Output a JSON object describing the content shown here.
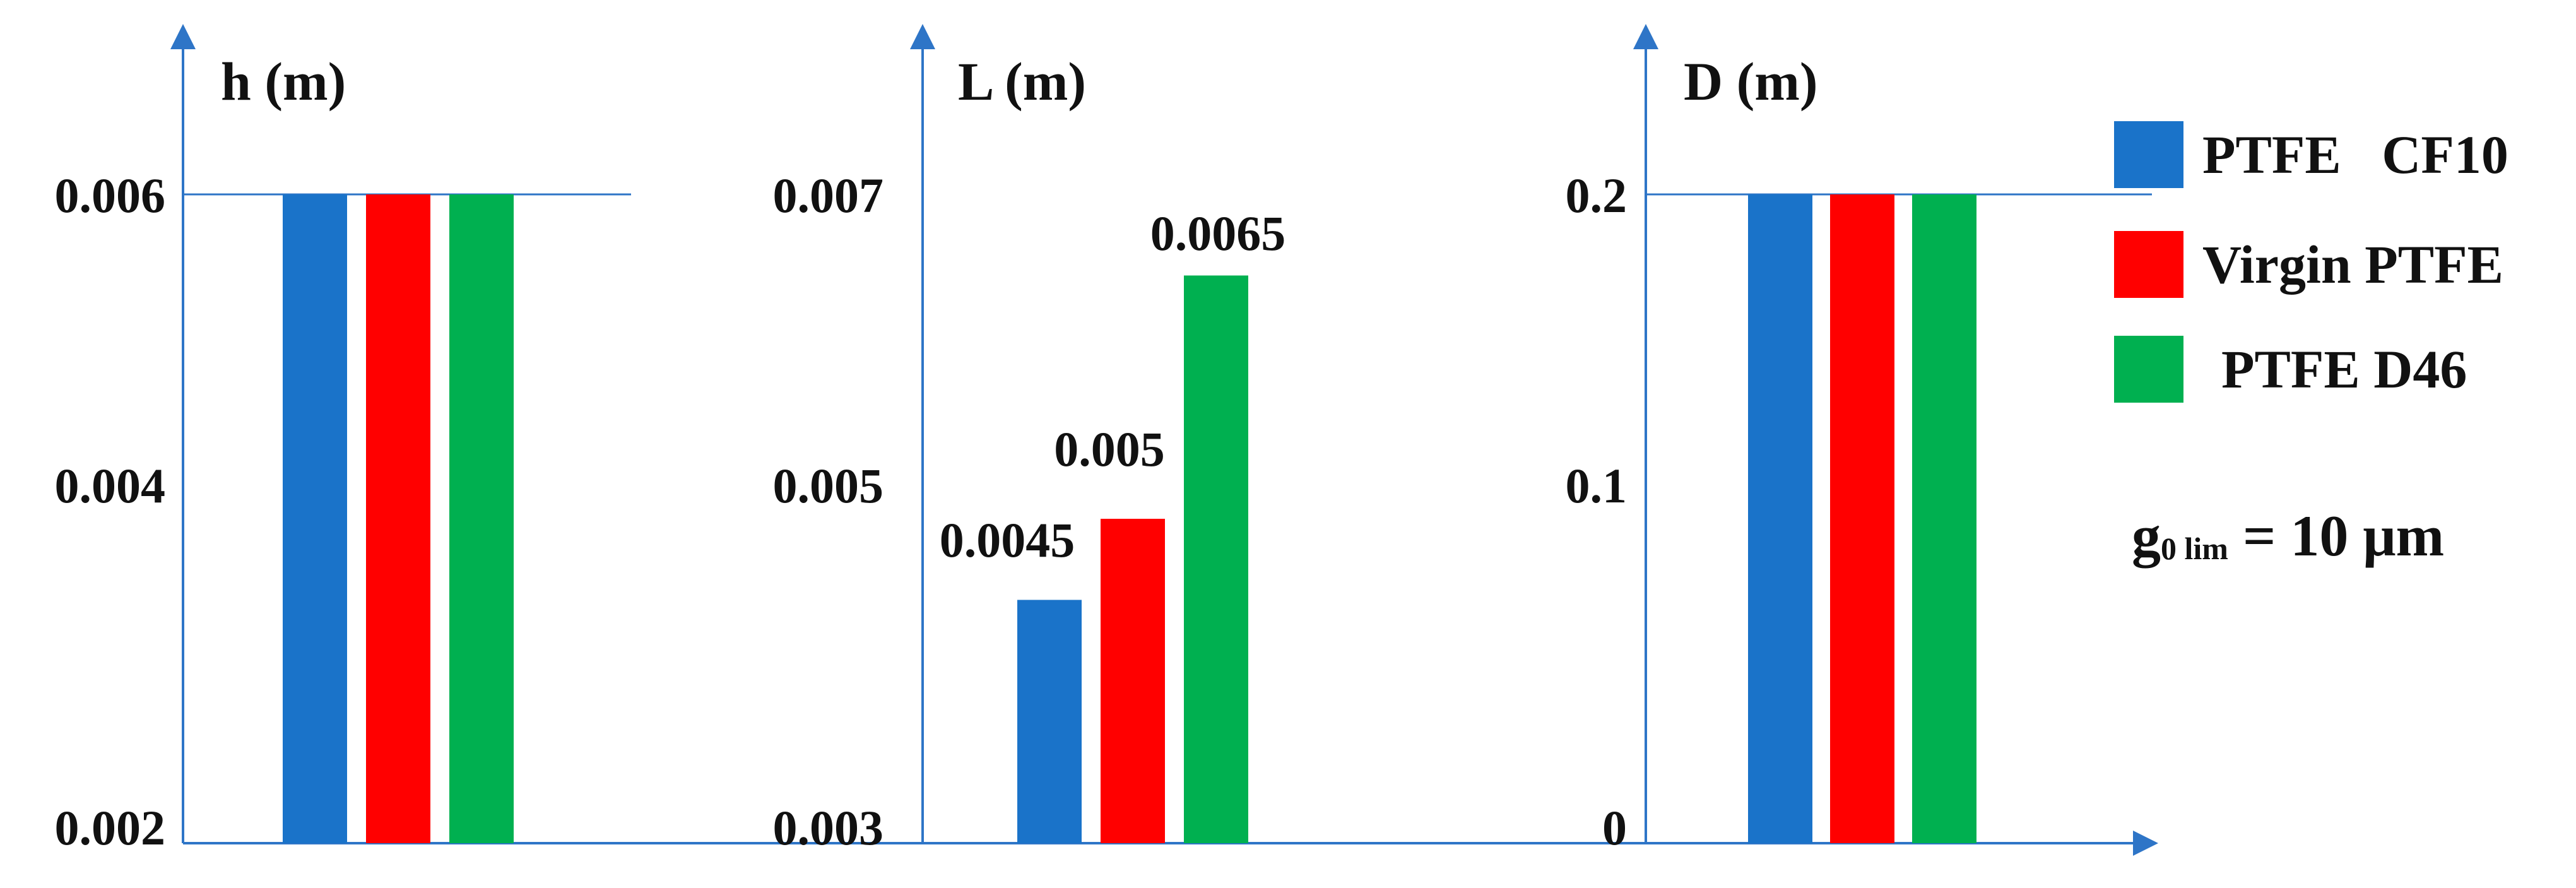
{
  "chart_data": [
    {
      "type": "bar",
      "ylabel": "h (m)",
      "y_ticks": [
        "0.002",
        "0.004",
        "0.006"
      ],
      "ylim": [
        0.002,
        0.006
      ],
      "series": [
        {
          "name": "PTFE   CF10",
          "value": 0.006
        },
        {
          "name": "Virgin PTFE",
          "value": 0.006
        },
        {
          "name": "PTFE D46",
          "value": 0.006
        }
      ],
      "data_labels": []
    },
    {
      "type": "bar",
      "ylabel": "L (m)",
      "y_ticks": [
        "0.003",
        "0.005",
        "0.007"
      ],
      "ylim": [
        0.003,
        0.007
      ],
      "series": [
        {
          "name": "PTFE   CF10",
          "value": 0.0045
        },
        {
          "name": "Virgin PTFE",
          "value": 0.005
        },
        {
          "name": "PTFE D46",
          "value": 0.0065
        }
      ],
      "data_labels": [
        "0.0045",
        "0.005",
        "0.0065"
      ]
    },
    {
      "type": "bar",
      "ylabel": "D (m)",
      "y_ticks": [
        "0",
        "0.1",
        "0.2"
      ],
      "ylim": [
        0,
        0.2
      ],
      "series": [
        {
          "name": "PTFE   CF10",
          "value": 0.2
        },
        {
          "name": "Virgin PTFE",
          "value": 0.2
        },
        {
          "name": "PTFE D46",
          "value": 0.2
        }
      ],
      "data_labels": []
    }
  ],
  "legend": {
    "placement": "right",
    "items": [
      {
        "label": "PTFE   CF10",
        "color": "#1a73c9"
      },
      {
        "label": "Virgin PTFE",
        "color": "#ff0000"
      },
      {
        "label": "PTFE D46",
        "color": "#00b050"
      }
    ]
  },
  "annotation": {
    "symbol": "g",
    "subscript": "0 lim",
    "rest": " = 10 μm"
  },
  "colors": {
    "axis": "#2e75c7",
    "series": [
      "#1a73c9",
      "#ff0000",
      "#00b050"
    ]
  }
}
